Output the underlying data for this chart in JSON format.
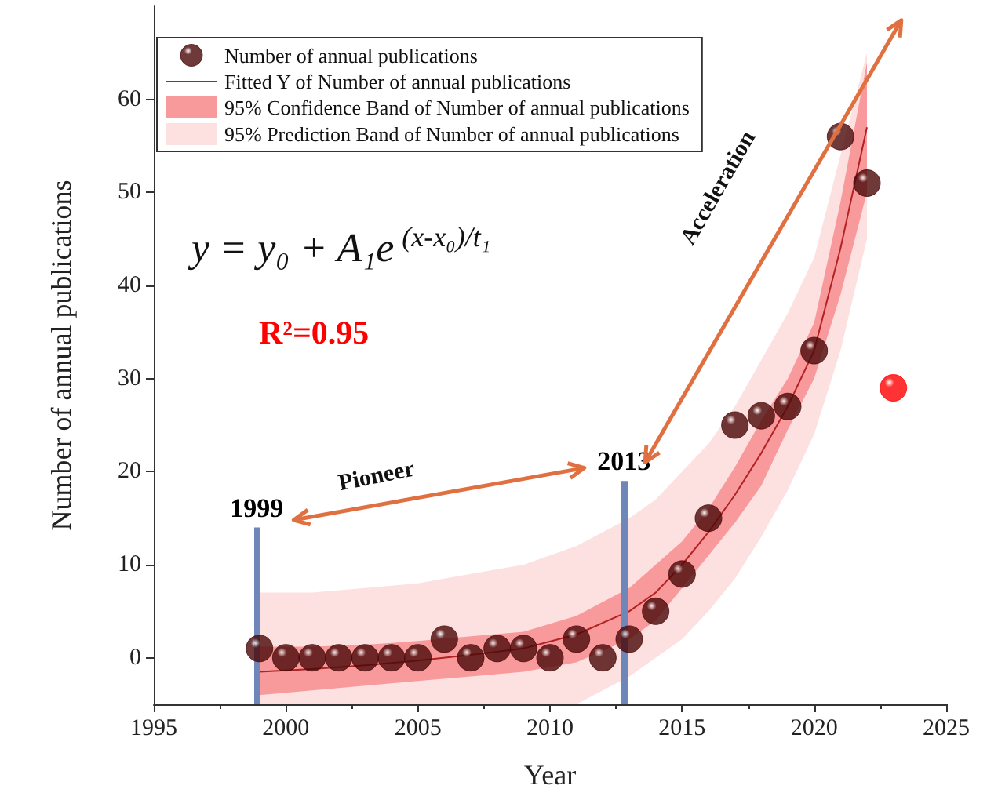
{
  "chart_data": {
    "type": "scatter",
    "xlabel": "Year",
    "ylabel": "Number of annual publications",
    "xlim": [
      1995,
      2025
    ],
    "xticks": [
      1995,
      2000,
      2005,
      2010,
      2015,
      2020,
      2025
    ],
    "ylim": [
      -5,
      70
    ],
    "yticks": [
      0,
      10,
      20,
      30,
      40,
      50,
      60
    ],
    "grid": false,
    "legend": "top left",
    "series": [
      {
        "name": "Number of annual publications",
        "color": "#4a0808",
        "marker": "circle",
        "x": [
          1999,
          2000,
          2001,
          2002,
          2003,
          2004,
          2005,
          2006,
          2007,
          2008,
          2009,
          2010,
          2011,
          2012,
          2013,
          2014,
          2015,
          2016,
          2017,
          2018,
          2019,
          2020,
          2021,
          2022
        ],
        "values": [
          1,
          0,
          0,
          0,
          0,
          0,
          0,
          2,
          0,
          1,
          1,
          0,
          2,
          0,
          2,
          5,
          9,
          15,
          25,
          26,
          27,
          33,
          56,
          51
        ]
      },
      {
        "name": "Fitted Y of Number of annual publications",
        "type": "line",
        "color": "#b22222",
        "marker": "none",
        "x": [
          1999,
          2001,
          2003,
          2005,
          2007,
          2009,
          2011,
          2013,
          2014,
          2015,
          2016,
          2017,
          2018,
          2019,
          2020,
          2021,
          2022
        ],
        "values": [
          -1.5,
          -1.2,
          -0.8,
          -0.3,
          0.3,
          1,
          2.5,
          5,
          7,
          10,
          13.5,
          17.5,
          22,
          27,
          33,
          44,
          57
        ]
      },
      {
        "name": "95% Confidence Band of Number of annual publications",
        "type": "line",
        "color": "#f89a9c",
        "x": [
          1999,
          2001,
          2003,
          2005,
          2007,
          2009,
          2011,
          2013,
          2014,
          2015,
          2016,
          2017,
          2018,
          2019,
          2020,
          2021,
          2022
        ],
        "values": [
          null,
          null,
          null,
          null,
          null,
          null,
          null,
          null,
          null,
          null,
          null,
          null,
          null,
          null,
          null,
          null,
          null
        ],
        "lower": [
          -4,
          -3.5,
          -3,
          -2.5,
          -2,
          -1.5,
          -0.5,
          2,
          4,
          7.5,
          11,
          14.5,
          18.5,
          24.5,
          30,
          39,
          50
        ],
        "upper": [
          1.2,
          1.2,
          1.4,
          1.8,
          2.3,
          2.8,
          4.5,
          7.5,
          10,
          12.5,
          16,
          20.5,
          25.5,
          30,
          36,
          49,
          64
        ]
      },
      {
        "name": "95% Prediction Band of Number of annual publications",
        "type": "line",
        "color": "#fde1e1",
        "x": [
          1999,
          2001,
          2003,
          2005,
          2007,
          2009,
          2011,
          2013,
          2014,
          2015,
          2016,
          2017,
          2018,
          2019,
          2020,
          2021,
          2022
        ],
        "values": [
          null,
          null,
          null,
          null,
          null,
          null,
          null,
          null,
          null,
          null,
          null,
          null,
          null,
          null,
          null,
          null,
          null
        ],
        "lower": [
          -5,
          -5,
          -5,
          -5,
          -5,
          -5,
          -5,
          -2,
          0,
          2,
          5,
          8.5,
          13,
          18,
          24,
          33,
          45
        ],
        "upper": [
          7,
          7,
          7.5,
          8,
          9,
          10,
          12,
          15,
          17,
          20,
          23,
          27,
          32,
          37,
          43,
          54,
          65
        ]
      },
      {
        "color": "#ff0000",
        "marker": "circle",
        "x": [
          2023
        ],
        "values": [
          29
        ]
      }
    ],
    "ref_lines": [
      {
        "axis": "x",
        "value": 1998.9,
        "label": "1999",
        "color": "#6f86b8"
      },
      {
        "axis": "x",
        "value": 2012.8,
        "label": "2013",
        "color": "#6f86b8"
      }
    ],
    "annotations": [
      "y = y₀ + A₁e$^{ (x-x₀)/t₁}$",
      "R²=0.95",
      "Pioneer",
      "Acceleration"
    ]
  }
}
